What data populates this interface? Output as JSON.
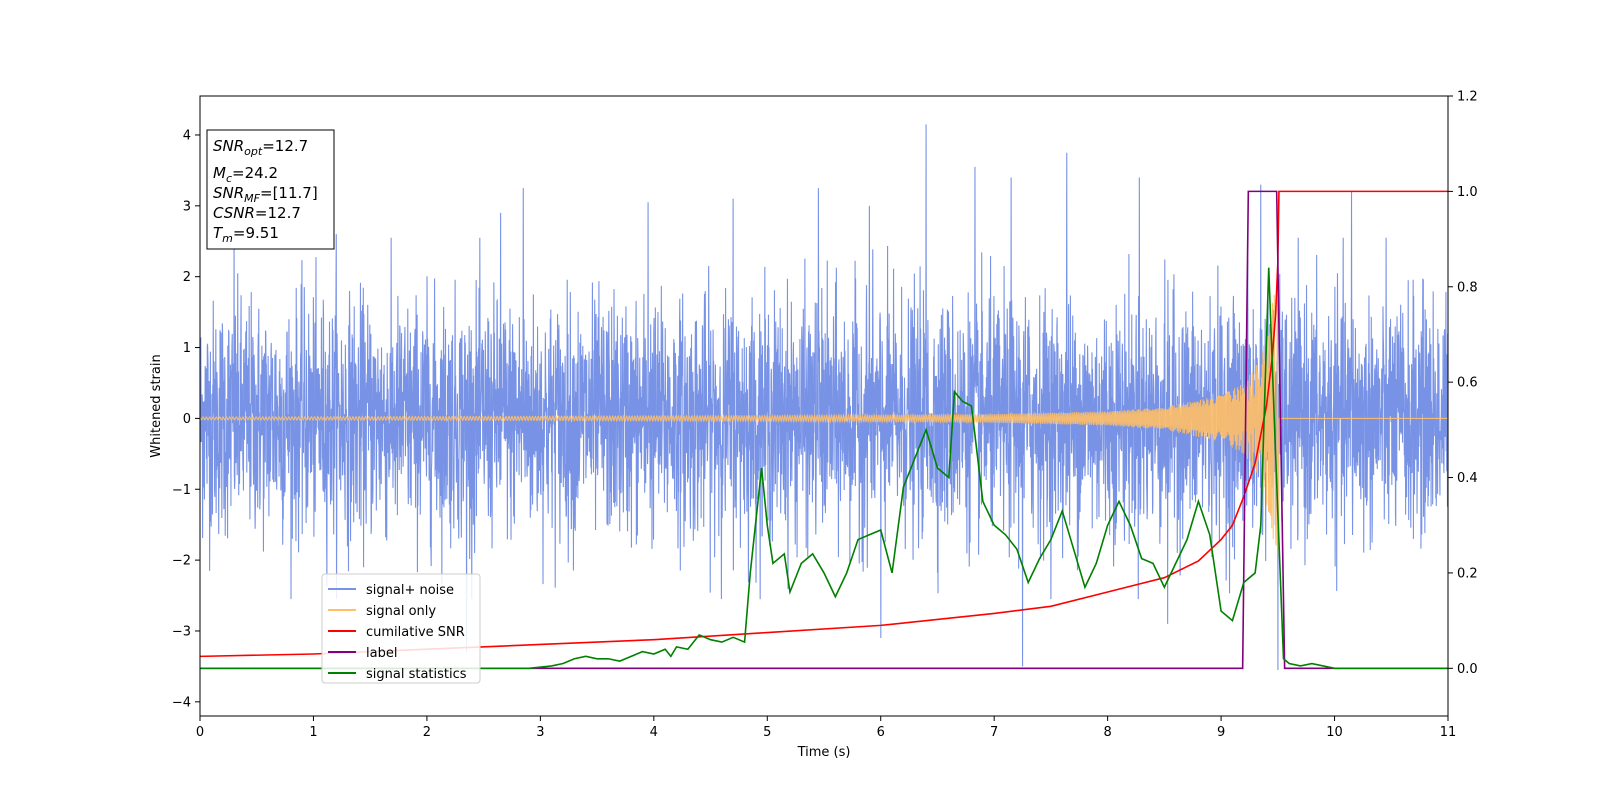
{
  "chart_data": {
    "type": "line",
    "xlabel": "Time (s)",
    "ylabel": "Whitened strain",
    "xlim": [
      0,
      11
    ],
    "ylim": [
      -4.2,
      4.55
    ],
    "y2lim": [
      -0.1,
      1.2
    ],
    "x_ticks": [
      "0",
      "1",
      "2",
      "3",
      "4",
      "5",
      "6",
      "7",
      "8",
      "9",
      "10",
      "11"
    ],
    "y_ticks": [
      "−4",
      "−3",
      "−2",
      "−1",
      "0",
      "1",
      "2",
      "3",
      "4"
    ],
    "y2_ticks": [
      "0.0",
      "0.2",
      "0.4",
      "0.6",
      "0.8",
      "1.0",
      "1.2"
    ],
    "legend_position": "lower-left",
    "info_box": {
      "snr_opt": "=12.7",
      "mc": "=24.2",
      "snr_mf": "=[11.7]",
      "csnr": "=12.7",
      "tm": "=9.51"
    },
    "series": [
      {
        "name": "signal+ noise",
        "color": "#7893e6",
        "axis": "left",
        "description": "whitened noise band approximately between -2.3 and 2.3 with spikes reaching about 4.2",
        "spikes": [
          [
            0.3,
            2.7
          ],
          [
            1.2,
            2.6
          ],
          [
            2.65,
            2.9
          ],
          [
            2.85,
            3.25
          ],
          [
            3.95,
            3.05
          ],
          [
            4.7,
            3.1
          ],
          [
            5.45,
            3.25
          ],
          [
            5.9,
            3.0
          ],
          [
            6.4,
            4.15
          ],
          [
            6.83,
            3.55
          ],
          [
            7.15,
            3.4
          ],
          [
            7.64,
            3.75
          ],
          [
            8.28,
            3.4
          ],
          [
            9.35,
            3.3
          ],
          [
            9.5,
            3.45
          ],
          [
            10.15,
            3.2
          ],
          [
            2.35,
            -3.3
          ],
          [
            6.0,
            -3.1
          ],
          [
            7.25,
            -3.5
          ],
          [
            8.53,
            -2.9
          ],
          [
            9.5,
            -3.55
          ]
        ]
      },
      {
        "name": "signal only",
        "color": "#ffbf66",
        "axis": "left",
        "description": "chirp waveform with amplitude growing toward merger at 9.51 s",
        "envelope": [
          [
            0.0,
            0.02
          ],
          [
            3.0,
            0.03
          ],
          [
            5.0,
            0.04
          ],
          [
            7.0,
            0.06
          ],
          [
            8.0,
            0.1
          ],
          [
            8.5,
            0.16
          ],
          [
            9.0,
            0.33
          ],
          [
            9.2,
            0.5
          ],
          [
            9.35,
            0.85
          ],
          [
            9.45,
            1.6
          ],
          [
            9.51,
            2.3
          ],
          [
            9.52,
            0.0
          ],
          [
            11.0,
            0.0
          ]
        ]
      },
      {
        "name": "cumilative SNR",
        "color": "#ff0000",
        "axis": "right",
        "points": [
          [
            0.0,
            0.025
          ],
          [
            1.0,
            0.03
          ],
          [
            2.0,
            0.04
          ],
          [
            3.0,
            0.05
          ],
          [
            4.0,
            0.06
          ],
          [
            5.0,
            0.075
          ],
          [
            6.0,
            0.09
          ],
          [
            7.0,
            0.115
          ],
          [
            7.5,
            0.13
          ],
          [
            8.0,
            0.16
          ],
          [
            8.5,
            0.19
          ],
          [
            8.8,
            0.225
          ],
          [
            9.0,
            0.27
          ],
          [
            9.1,
            0.3
          ],
          [
            9.2,
            0.36
          ],
          [
            9.3,
            0.43
          ],
          [
            9.4,
            0.55
          ],
          [
            9.45,
            0.65
          ],
          [
            9.48,
            0.74
          ],
          [
            9.5,
            0.85
          ],
          [
            9.51,
            1.0
          ],
          [
            11.0,
            1.0
          ]
        ]
      },
      {
        "name": "label",
        "color": "#800080",
        "axis": "right",
        "points": [
          [
            0.0,
            0.0
          ],
          [
            9.19,
            0.0
          ],
          [
            9.24,
            1.0
          ],
          [
            9.49,
            1.0
          ],
          [
            9.56,
            0.0
          ],
          [
            11.0,
            0.0
          ]
        ]
      },
      {
        "name": "signal statistics",
        "color": "#008000",
        "axis": "right",
        "points": [
          [
            0.0,
            0.0
          ],
          [
            2.9,
            0.0
          ],
          [
            3.1,
            0.005
          ],
          [
            3.2,
            0.01
          ],
          [
            3.3,
            0.02
          ],
          [
            3.4,
            0.025
          ],
          [
            3.5,
            0.02
          ],
          [
            3.6,
            0.02
          ],
          [
            3.7,
            0.015
          ],
          [
            3.8,
            0.025
          ],
          [
            3.9,
            0.035
          ],
          [
            4.0,
            0.03
          ],
          [
            4.1,
            0.04
          ],
          [
            4.15,
            0.025
          ],
          [
            4.2,
            0.045
          ],
          [
            4.3,
            0.04
          ],
          [
            4.4,
            0.07
          ],
          [
            4.5,
            0.06
          ],
          [
            4.6,
            0.055
          ],
          [
            4.7,
            0.065
          ],
          [
            4.8,
            0.055
          ],
          [
            4.85,
            0.2
          ],
          [
            4.95,
            0.42
          ],
          [
            5.0,
            0.3
          ],
          [
            5.05,
            0.22
          ],
          [
            5.15,
            0.24
          ],
          [
            5.2,
            0.16
          ],
          [
            5.3,
            0.22
          ],
          [
            5.4,
            0.24
          ],
          [
            5.5,
            0.2
          ],
          [
            5.6,
            0.15
          ],
          [
            5.7,
            0.2
          ],
          [
            5.8,
            0.27
          ],
          [
            5.9,
            0.28
          ],
          [
            6.0,
            0.29
          ],
          [
            6.1,
            0.2
          ],
          [
            6.2,
            0.38
          ],
          [
            6.3,
            0.44
          ],
          [
            6.4,
            0.5
          ],
          [
            6.5,
            0.42
          ],
          [
            6.6,
            0.4
          ],
          [
            6.65,
            0.58
          ],
          [
            6.72,
            0.56
          ],
          [
            6.8,
            0.55
          ],
          [
            6.9,
            0.35
          ],
          [
            7.0,
            0.3
          ],
          [
            7.1,
            0.28
          ],
          [
            7.2,
            0.25
          ],
          [
            7.3,
            0.18
          ],
          [
            7.4,
            0.23
          ],
          [
            7.5,
            0.27
          ],
          [
            7.6,
            0.33
          ],
          [
            7.7,
            0.25
          ],
          [
            7.8,
            0.17
          ],
          [
            7.9,
            0.22
          ],
          [
            8.0,
            0.3
          ],
          [
            8.1,
            0.35
          ],
          [
            8.2,
            0.3
          ],
          [
            8.3,
            0.23
          ],
          [
            8.4,
            0.22
          ],
          [
            8.5,
            0.17
          ],
          [
            8.6,
            0.22
          ],
          [
            8.7,
            0.27
          ],
          [
            8.8,
            0.35
          ],
          [
            8.9,
            0.28
          ],
          [
            9.0,
            0.12
          ],
          [
            9.1,
            0.1
          ],
          [
            9.2,
            0.18
          ],
          [
            9.3,
            0.2
          ],
          [
            9.35,
            0.3
          ],
          [
            9.42,
            0.84
          ],
          [
            9.48,
            0.45
          ],
          [
            9.55,
            0.02
          ],
          [
            9.6,
            0.01
          ],
          [
            9.7,
            0.005
          ],
          [
            9.8,
            0.01
          ],
          [
            10.0,
            0.0
          ],
          [
            11.0,
            0.0
          ]
        ]
      }
    ]
  }
}
